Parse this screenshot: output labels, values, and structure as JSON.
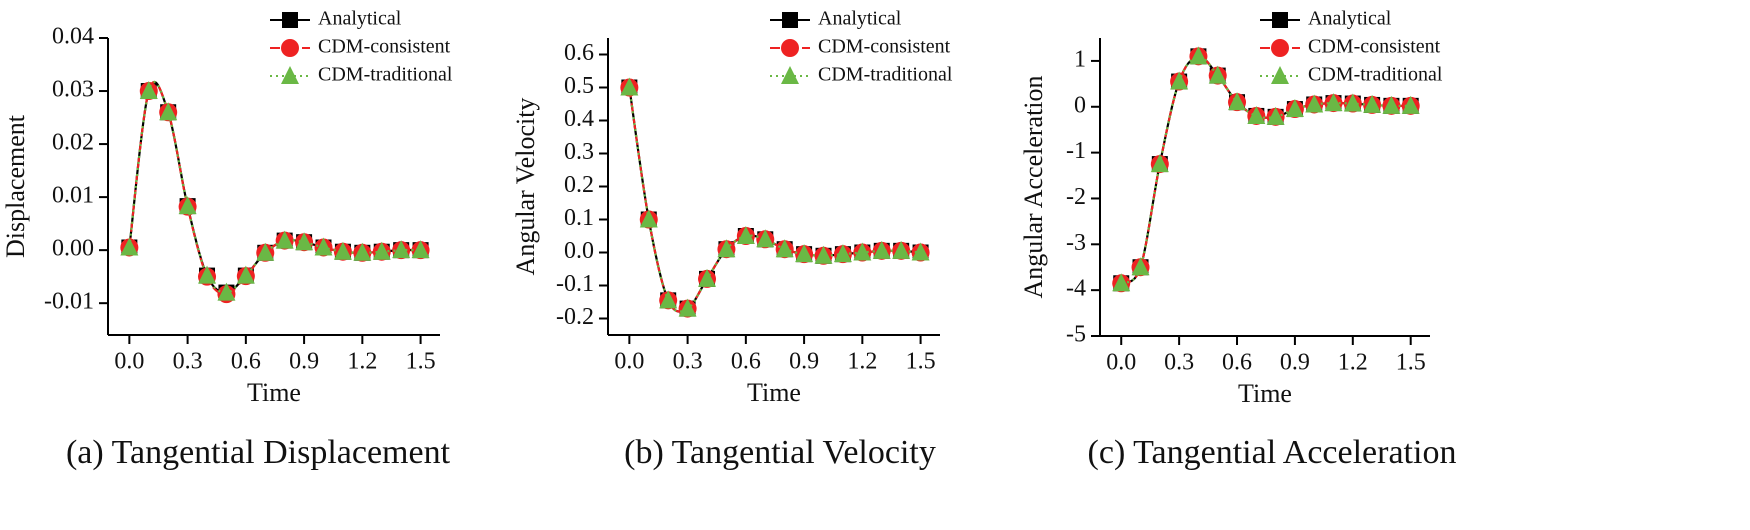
{
  "chart_data": [
    {
      "type": "line",
      "caption": "(a) Tangential Displacement",
      "xlabel": "Time",
      "ylabel": "Displacement",
      "x": [
        0,
        0.1,
        0.2,
        0.3,
        0.4,
        0.5,
        0.6,
        0.7,
        0.8,
        0.9,
        1.0,
        1.1,
        1.2,
        1.3,
        1.4,
        1.5
      ],
      "xlim": [
        -0.11,
        1.6
      ],
      "ylim": [
        -0.016,
        0.04
      ],
      "xticks": [
        {
          "value": 0,
          "label": "0.0"
        },
        0.3,
        0.6,
        0.9,
        1.2,
        1.5
      ],
      "yticks": [
        -0.01,
        {
          "value": 0,
          "label": "0.00"
        },
        0.01,
        0.02,
        0.03,
        0.04
      ],
      "legend": "top-right",
      "series": [
        {
          "name": "Analytical",
          "color": "#000000",
          "marker": "square",
          "line_style": "solid",
          "values": [
            0.0005,
            0.03,
            0.026,
            0.0083,
            -0.0048,
            -0.008,
            -0.0048,
            -0.0005,
            0.0018,
            0.0015,
            0.0005,
            -0.0003,
            -0.0005,
            -0.0003,
            0.0,
            0.0
          ]
        },
        {
          "name": "CDM-consistent",
          "color": "#ee2222",
          "marker": "circle",
          "line_style": "dashed",
          "values": [
            0.0005,
            0.03,
            0.026,
            0.0082,
            -0.005,
            -0.0083,
            -0.0049,
            -0.0005,
            0.0018,
            0.0015,
            0.0005,
            -0.0003,
            -0.0005,
            -0.0003,
            0.0,
            0.0
          ]
        },
        {
          "name": "CDM-traditional",
          "color": "#6ab845",
          "marker": "triangle",
          "line_style": "dotted",
          "values": [
            0.0005,
            0.03,
            0.026,
            0.0083,
            -0.0048,
            -0.008,
            -0.0048,
            -0.0005,
            0.0018,
            0.0015,
            0.0005,
            -0.0003,
            -0.0005,
            -0.0003,
            0.0,
            0.0
          ]
        }
      ]
    },
    {
      "type": "line",
      "caption": "(b) Tangential Velocity",
      "xlabel": "Time",
      "ylabel": "Angular Velocity",
      "x": [
        0,
        0.1,
        0.2,
        0.3,
        0.4,
        0.5,
        0.6,
        0.7,
        0.8,
        0.9,
        1.0,
        1.1,
        1.2,
        1.3,
        1.4,
        1.5
      ],
      "xlim": [
        -0.11,
        1.6
      ],
      "ylim": [
        -0.25,
        0.65
      ],
      "xticks": [
        {
          "value": 0,
          "label": "0.0"
        },
        0.3,
        0.6,
        0.9,
        1.2,
        1.5
      ],
      "yticks": [
        -0.2,
        -0.1,
        {
          "value": 0,
          "label": "0.0"
        },
        0.1,
        0.2,
        0.3,
        0.4,
        0.5,
        0.6
      ],
      "legend": "top-right",
      "series": [
        {
          "name": "Analytical",
          "color": "#000000",
          "marker": "square",
          "line_style": "solid",
          "values": [
            0.5,
            0.1,
            -0.145,
            -0.17,
            -0.08,
            0.01,
            0.05,
            0.04,
            0.01,
            -0.005,
            -0.01,
            -0.005,
            0.0,
            0.005,
            0.005,
            0.0
          ]
        },
        {
          "name": "CDM-consistent",
          "color": "#ee2222",
          "marker": "circle",
          "line_style": "dashed",
          "values": [
            0.5,
            0.1,
            -0.145,
            -0.17,
            -0.08,
            0.01,
            0.05,
            0.04,
            0.01,
            -0.005,
            -0.01,
            -0.005,
            0.0,
            0.005,
            0.005,
            0.0
          ]
        },
        {
          "name": "CDM-traditional",
          "color": "#6ab845",
          "marker": "triangle",
          "line_style": "dotted",
          "values": [
            0.5,
            0.1,
            -0.145,
            -0.17,
            -0.08,
            0.01,
            0.05,
            0.04,
            0.01,
            -0.005,
            -0.01,
            -0.005,
            0.0,
            0.005,
            0.005,
            0.0
          ]
        }
      ]
    },
    {
      "type": "line",
      "caption": "(c) Tangential Acceleration",
      "xlabel": "Time",
      "ylabel": "Angular Acceleration",
      "x": [
        0,
        0.1,
        0.2,
        0.3,
        0.4,
        0.5,
        0.6,
        0.7,
        0.8,
        0.9,
        1.0,
        1.1,
        1.2,
        1.3,
        1.4,
        1.5
      ],
      "xlim": [
        -0.11,
        1.6
      ],
      "ylim": [
        -5,
        1.5
      ],
      "xticks": [
        {
          "value": 0,
          "label": "0.0"
        },
        0.3,
        0.6,
        0.9,
        1.2,
        1.5
      ],
      "yticks": [
        -5,
        -4,
        -3,
        -2,
        -1,
        0,
        1
      ],
      "legend": "top-right",
      "series": [
        {
          "name": "Analytical",
          "color": "#000000",
          "marker": "square",
          "line_style": "solid",
          "values": [
            -3.85,
            -3.5,
            -1.25,
            0.55,
            1.1,
            0.68,
            0.1,
            -0.2,
            -0.22,
            -0.05,
            0.05,
            0.08,
            0.07,
            0.04,
            0.02,
            0.02
          ]
        },
        {
          "name": "CDM-consistent",
          "color": "#ee2222",
          "marker": "circle",
          "line_style": "dashed",
          "values": [
            -3.85,
            -3.5,
            -1.25,
            0.55,
            1.1,
            0.68,
            0.1,
            -0.2,
            -0.22,
            -0.05,
            0.05,
            0.08,
            0.07,
            0.04,
            0.02,
            0.02
          ]
        },
        {
          "name": "CDM-traditional",
          "color": "#6ab845",
          "marker": "triangle",
          "line_style": "dotted",
          "values": [
            -3.85,
            -3.5,
            -1.25,
            0.55,
            1.1,
            0.68,
            0.1,
            -0.2,
            -0.22,
            -0.05,
            0.05,
            0.08,
            0.07,
            0.04,
            0.02,
            0.02
          ]
        }
      ]
    }
  ]
}
